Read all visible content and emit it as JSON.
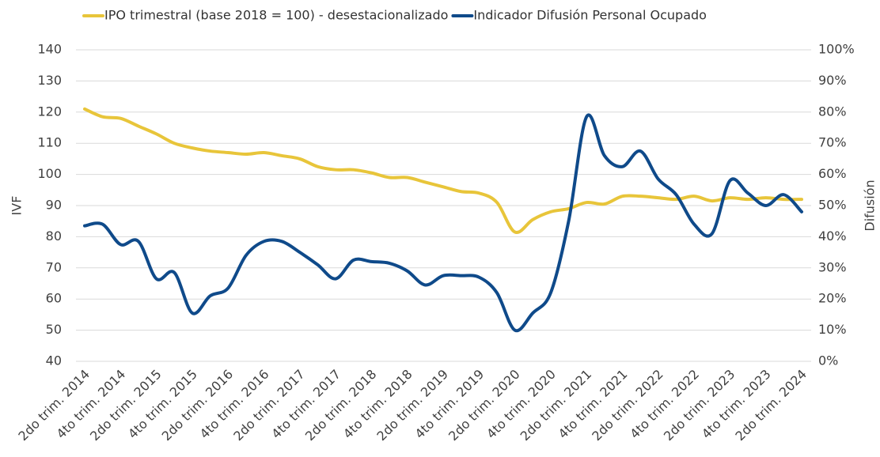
{
  "chart_data": {
    "type": "line",
    "y_label": "IVF",
    "y2_label": "Difusión",
    "categories": [
      "2do trim. 2014",
      null,
      "4to trim. 2014",
      null,
      "2do trim. 2015",
      null,
      "4to trim. 2015",
      null,
      "2do trim. 2016",
      null,
      "4to trim. 2016",
      null,
      "2do trim. 2017",
      null,
      "4to trim. 2017",
      null,
      "2do trim. 2018",
      null,
      "4to trim. 2018",
      null,
      "2do trim. 2019",
      null,
      "4to trim. 2019",
      null,
      "2do trim. 2020",
      null,
      "4to trim. 2020",
      null,
      "2do trim. 2021",
      null,
      "4to trim. 2021",
      null,
      "2do trim. 2022",
      null,
      "4to trim. 2022",
      null,
      "2do trim. 2023",
      null,
      "4to trim. 2023",
      null,
      "2do trim. 2024"
    ],
    "series": [
      {
        "name": "IPO trimestral (base 2018 = 100) - desestacionalizado",
        "color": "#e8c53a",
        "axis": "y",
        "values": [
          121,
          118.5,
          118,
          115.5,
          113,
          110,
          108.5,
          107.5,
          107,
          106.5,
          107,
          106,
          105,
          102.5,
          101.5,
          101.5,
          100.5,
          99,
          99,
          97.5,
          96,
          94.5,
          94,
          91,
          81.5,
          85.5,
          88,
          89,
          91,
          90.5,
          93,
          93,
          92.5,
          92,
          93,
          91.5,
          92.5,
          92,
          92.5,
          92,
          92
        ]
      },
      {
        "name": "Indicador Difusión Personal Ocupado",
        "color": "#0f4a8a",
        "axis": "y2",
        "values": [
          43.5,
          44,
          37.5,
          38.5,
          26.5,
          28.5,
          15.5,
          21,
          23.5,
          34,
          38.5,
          38.5,
          35,
          31,
          26.5,
          32.5,
          32,
          31.5,
          29,
          24.5,
          27.5,
          27.5,
          27,
          22,
          10,
          15.5,
          22,
          45,
          78.5,
          66,
          62.5,
          67.5,
          58.5,
          53.5,
          44,
          41,
          58,
          54,
          50,
          53.5,
          48
        ]
      }
    ],
    "ylim": [
      40,
      140
    ],
    "yticks": [
      40,
      50,
      60,
      70,
      80,
      90,
      100,
      110,
      120,
      130,
      140
    ],
    "y2lim": [
      0,
      100
    ],
    "y2ticks": [
      {
        "value": 0,
        "label": "0%"
      },
      {
        "value": 10,
        "label": "10%"
      },
      {
        "value": 20,
        "label": "20%"
      },
      {
        "value": 30,
        "label": "30%"
      },
      {
        "value": 40,
        "label": "40%"
      },
      {
        "value": 50,
        "label": "50%"
      },
      {
        "value": 60,
        "label": "60%"
      },
      {
        "value": 70,
        "label": "70%"
      },
      {
        "value": 80,
        "label": "80%"
      },
      {
        "value": 90,
        "label": "90%"
      },
      {
        "value": 100,
        "label": "100%"
      }
    ],
    "grid": true,
    "legend": "top"
  }
}
